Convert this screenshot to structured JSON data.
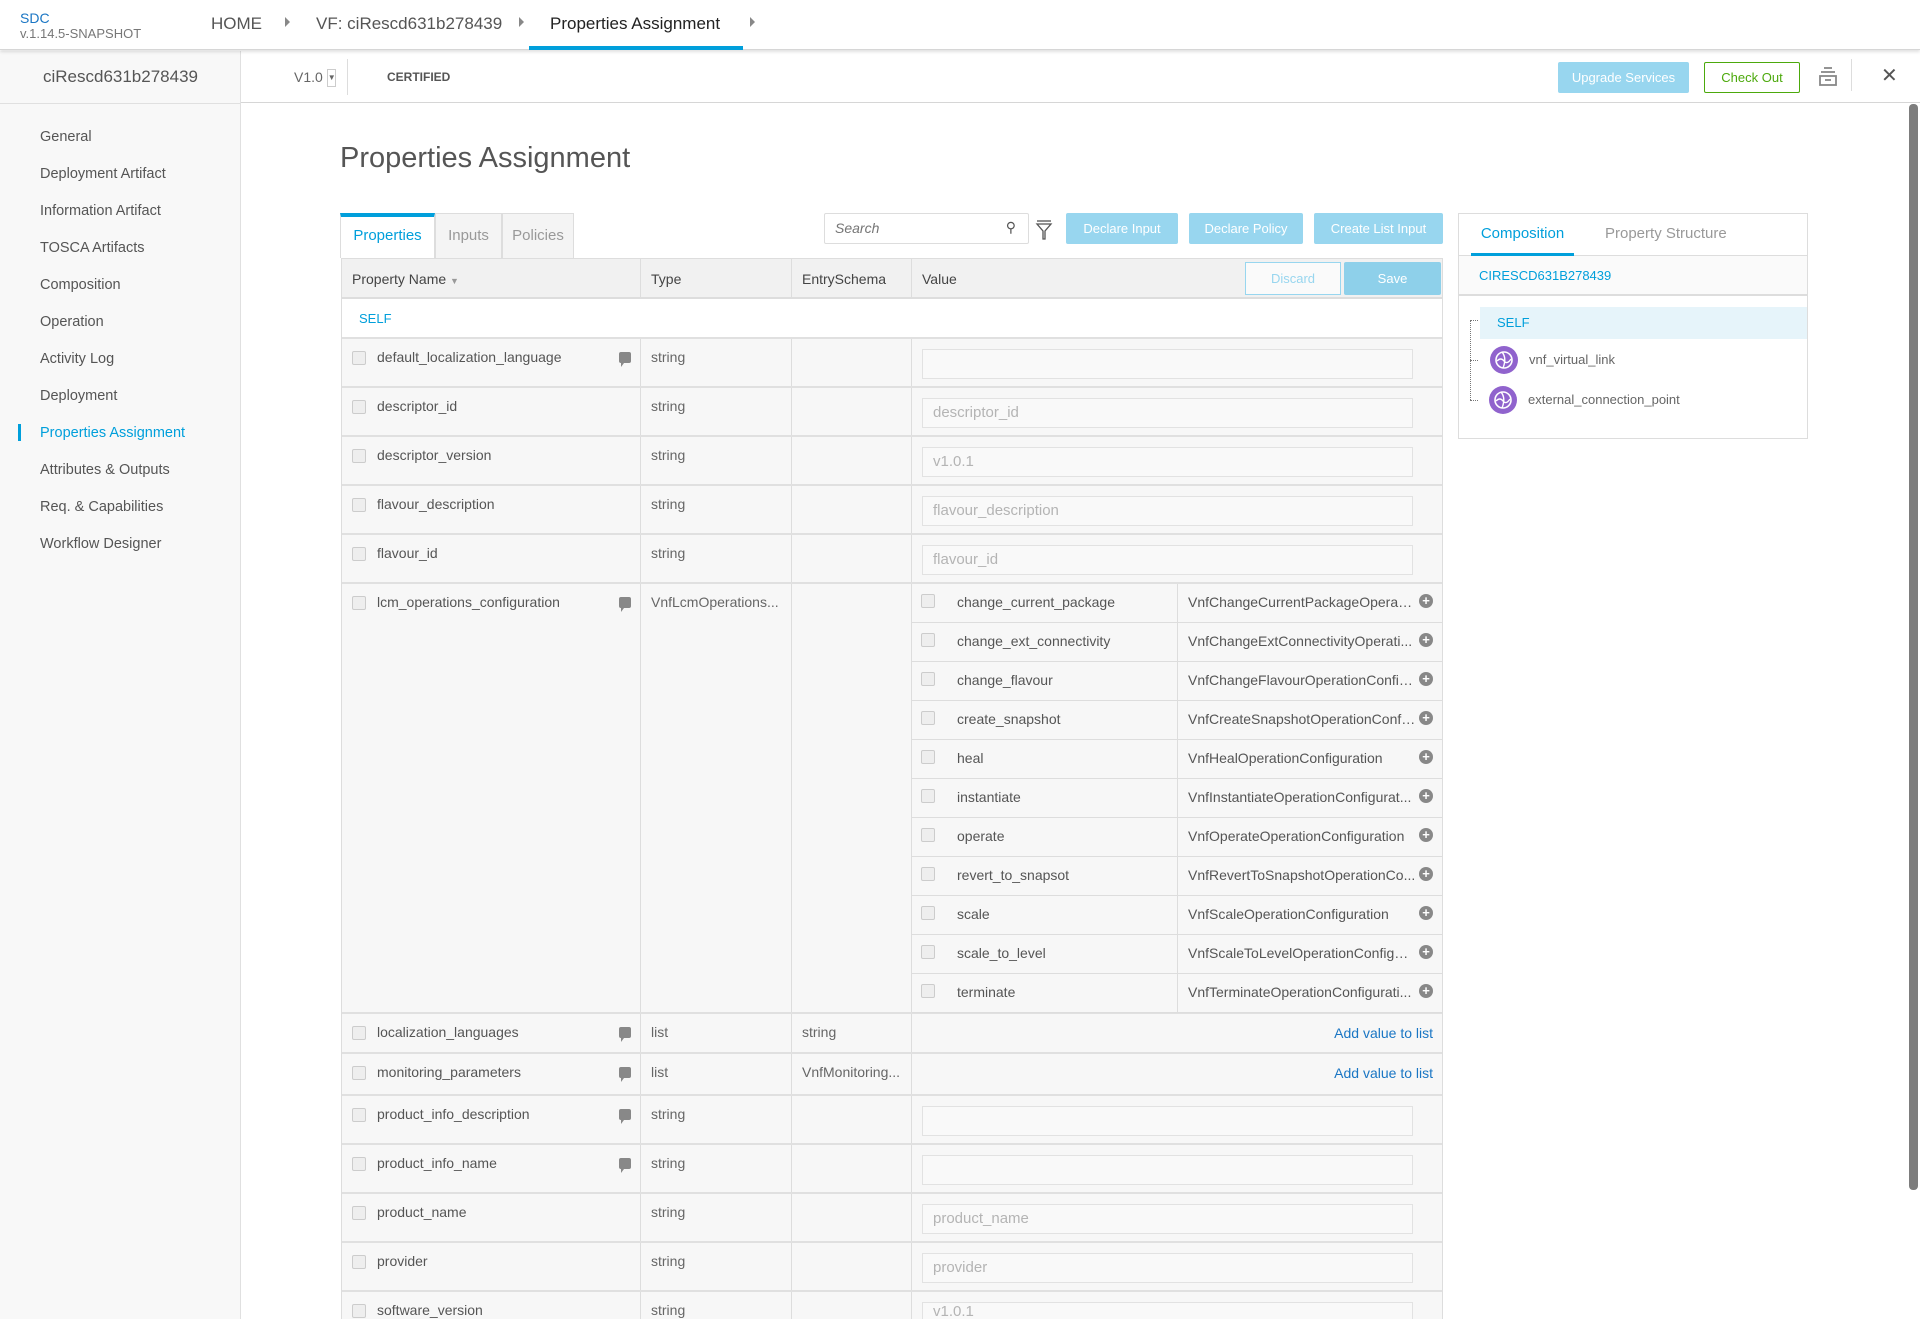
{
  "app": {
    "name": "SDC",
    "version": "v.1.14.5-SNAPSHOT"
  },
  "breadcrumbs": [
    {
      "label": "HOME"
    },
    {
      "label": "VF: ciRescd631b278439"
    },
    {
      "label": "Properties Assignment",
      "active": true
    }
  ],
  "component": {
    "name": "ciRescd631b278439",
    "version": "V1.0",
    "status": "CERTIFIED"
  },
  "actions": {
    "upgrade": "Upgrade Services",
    "checkout": "Check Out"
  },
  "sidebar": {
    "active": "Properties Assignment",
    "items": [
      "General",
      "Deployment Artifact",
      "Information Artifact",
      "TOSCA Artifacts",
      "Composition",
      "Operation",
      "Activity Log",
      "Deployment",
      "Properties Assignment",
      "Attributes & Outputs",
      "Req. & Capabilities",
      "Workflow Designer"
    ]
  },
  "page_title": "Properties Assignment",
  "tabs": [
    {
      "label": "Properties",
      "active": true
    },
    {
      "label": "Inputs"
    },
    {
      "label": "Policies"
    }
  ],
  "search": {
    "placeholder": "Search",
    "value": ""
  },
  "toolbar": {
    "declare_input": "Declare Input",
    "declare_policy": "Declare Policy",
    "create_list_input": "Create List Input"
  },
  "table": {
    "headers": {
      "name": "Property Name",
      "type": "Type",
      "schema": "EntrySchema",
      "value": "Value"
    },
    "discard": "Discard",
    "save": "Save",
    "group": "SELF",
    "rows": [
      {
        "name": "default_localization_language",
        "comment": true,
        "type": "string",
        "schema": "",
        "value": {
          "kind": "input",
          "value": "",
          "placeholder": ""
        }
      },
      {
        "name": "descriptor_id",
        "comment": false,
        "type": "string",
        "schema": "",
        "value": {
          "kind": "input",
          "value": "",
          "placeholder": "descriptor_id"
        }
      },
      {
        "name": "descriptor_version",
        "comment": false,
        "type": "string",
        "schema": "",
        "value": {
          "kind": "input",
          "value": "",
          "placeholder": "v1.0.1"
        }
      },
      {
        "name": "flavour_description",
        "comment": false,
        "type": "string",
        "schema": "",
        "value": {
          "kind": "input",
          "value": "",
          "placeholder": "flavour_description"
        }
      },
      {
        "name": "flavour_id",
        "comment": false,
        "type": "string",
        "schema": "",
        "value": {
          "kind": "input",
          "value": "",
          "placeholder": "flavour_id"
        }
      },
      {
        "name": "lcm_operations_configuration",
        "comment": true,
        "type": "VnfLcmOperations...",
        "schema": "",
        "value": {
          "kind": "nested",
          "items": [
            {
              "name": "change_current_package",
              "type": "VnfChangeCurrentPackageOperati..."
            },
            {
              "name": "change_ext_connectivity",
              "type": "VnfChangeExtConnectivityOperati..."
            },
            {
              "name": "change_flavour",
              "type": "VnfChangeFlavourOperationConfig..."
            },
            {
              "name": "create_snapshot",
              "type": "VnfCreateSnapshotOperationConfi..."
            },
            {
              "name": "heal",
              "type": "VnfHealOperationConfiguration"
            },
            {
              "name": "instantiate",
              "type": "VnfInstantiateOperationConfigurat..."
            },
            {
              "name": "operate",
              "type": "VnfOperateOperationConfiguration"
            },
            {
              "name": "revert_to_snapsot",
              "type": "VnfRevertToSnapshotOperationCo..."
            },
            {
              "name": "scale",
              "type": "VnfScaleOperationConfiguration"
            },
            {
              "name": "scale_to_level",
              "type": "VnfScaleToLevelOperationConfigur..."
            },
            {
              "name": "terminate",
              "type": "VnfTerminateOperationConfigurati..."
            }
          ]
        }
      },
      {
        "name": "localization_languages",
        "comment": true,
        "type": "list",
        "schema": "string",
        "value": {
          "kind": "list",
          "link": "Add value to list"
        }
      },
      {
        "name": "monitoring_parameters",
        "comment": true,
        "type": "list",
        "schema": "VnfMonitoring...",
        "value": {
          "kind": "list",
          "link": "Add value to list"
        }
      },
      {
        "name": "product_info_description",
        "comment": true,
        "type": "string",
        "schema": "",
        "value": {
          "kind": "input",
          "value": "",
          "placeholder": ""
        }
      },
      {
        "name": "product_info_name",
        "comment": true,
        "type": "string",
        "schema": "",
        "value": {
          "kind": "input",
          "value": "",
          "placeholder": ""
        }
      },
      {
        "name": "product_name",
        "comment": false,
        "type": "string",
        "schema": "",
        "value": {
          "kind": "input",
          "value": "",
          "placeholder": "product_name"
        }
      },
      {
        "name": "provider",
        "comment": false,
        "type": "string",
        "schema": "",
        "value": {
          "kind": "input",
          "value": "",
          "placeholder": "provider"
        }
      },
      {
        "name": "software_version",
        "comment": false,
        "type": "string",
        "schema": "",
        "value": {
          "kind": "input",
          "value": "",
          "placeholder": "v1.0.1"
        }
      }
    ]
  },
  "right_panel": {
    "tabs": [
      {
        "label": "Composition",
        "active": true
      },
      {
        "label": "Property Structure"
      }
    ],
    "instance": "CIRESCD631B278439",
    "tree": [
      {
        "label": "SELF",
        "selected": true
      },
      {
        "label": "vnf_virtual_link",
        "icon": "network-icon"
      },
      {
        "label": "external_connection_point",
        "icon": "network-icon"
      }
    ]
  },
  "colors": {
    "accent": "#009fdb",
    "button_light": "#98d6ef",
    "checkout": "#4ca90c",
    "node_icon": "#9063cd"
  }
}
